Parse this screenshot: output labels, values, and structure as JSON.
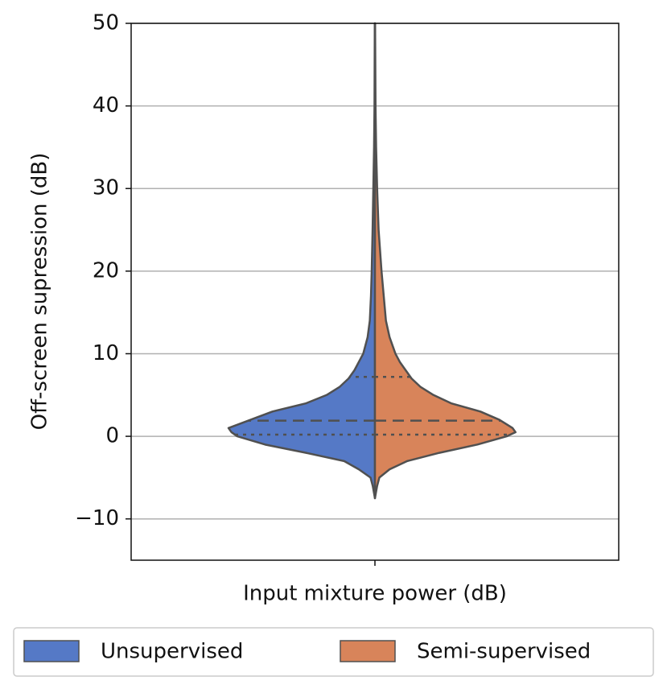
{
  "chart_data": {
    "type": "violin",
    "xlabel": "Input mixture power (dB)",
    "ylabel": "Off-screen supression (dB)",
    "categories": [
      null
    ],
    "ylim": [
      -15,
      50
    ],
    "yticks": [
      {
        "value": -10,
        "label": "−10"
      },
      0,
      10,
      20,
      30,
      40,
      50
    ],
    "grid": true,
    "legend": "bottom",
    "series": [
      {
        "name": "Unsupervised",
        "color": "#5579c6",
        "side": "left",
        "y": [
          -7.5,
          -6,
          -5,
          -4,
          -3,
          -2,
          -1,
          0,
          0.5,
          1,
          2,
          3,
          4,
          5,
          6,
          7,
          8,
          9,
          10,
          12,
          14,
          17,
          20,
          25,
          30,
          35,
          40,
          50
        ],
        "density": [
          0,
          1.5,
          3,
          11,
          21,
          47,
          75,
          94,
          98,
          100,
          85,
          70,
          47,
          33,
          24,
          18,
          14,
          11,
          8,
          5,
          3.5,
          2.7,
          2.2,
          1.6,
          1.1,
          0.6,
          0.3,
          0.1
        ],
        "quartiles": [
          0.2,
          1.9,
          7.2
        ]
      },
      {
        "name": "Semi-supervised",
        "color": "#d8845a",
        "side": "right",
        "y": [
          -7.5,
          -6,
          -5,
          -4,
          -3,
          -2,
          -1,
          0,
          0.5,
          1,
          2,
          3,
          4,
          5,
          6,
          7,
          8,
          9,
          10,
          12,
          14,
          17,
          20,
          25,
          30,
          35,
          40,
          50
        ],
        "density": [
          0,
          1.5,
          3,
          10,
          22,
          44,
          70,
          90,
          96,
          94,
          85,
          72,
          52,
          40,
          31,
          25,
          21,
          17,
          14,
          10,
          7.5,
          6,
          4.5,
          2.5,
          1.5,
          0.8,
          0.4,
          0.1
        ],
        "quartiles": [
          0.2,
          1.9,
          7.2
        ]
      }
    ]
  }
}
